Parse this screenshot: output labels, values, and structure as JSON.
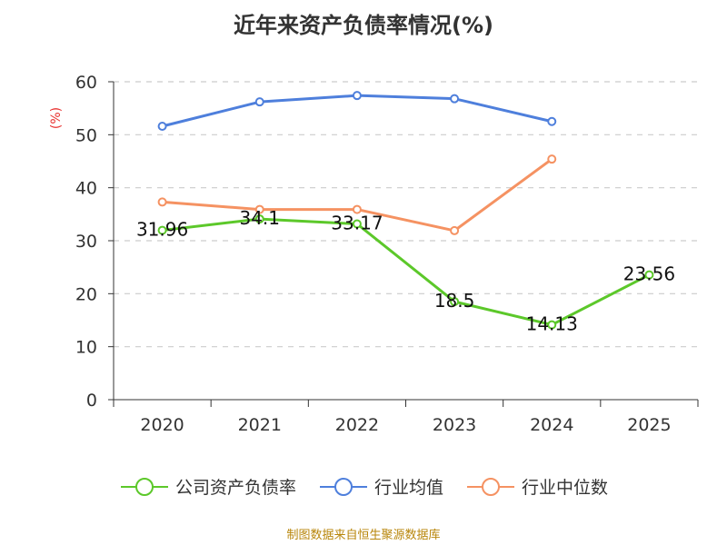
{
  "title": "近年来资产负债率情况(%)",
  "source": "制图数据来自恒生聚源数据库",
  "chart_data": {
    "type": "line",
    "title": "近年来资产负债率情况(%)",
    "ylabel": "(%)",
    "xlabel": "",
    "ylim": [
      0,
      60
    ],
    "yticks": [
      0,
      10,
      20,
      30,
      40,
      50,
      60
    ],
    "categories": [
      "2020",
      "2021",
      "2022",
      "2023",
      "2024",
      "2025"
    ],
    "grid": true,
    "legend_position": "bottom",
    "series": [
      {
        "name": "公司资产负债率",
        "color": "#5cc82a",
        "values": [
          31.96,
          34.1,
          33.17,
          18.5,
          14.13,
          23.56
        ],
        "labels": [
          "31.96",
          "34.1",
          "33.17",
          "18.5",
          "14.13",
          "23.56"
        ]
      },
      {
        "name": "行业均值",
        "color": "#4e7fdc",
        "values": [
          51.6,
          56.2,
          57.4,
          56.8,
          52.5,
          null
        ]
      },
      {
        "name": "行业中位数",
        "color": "#f59262",
        "values": [
          37.3,
          35.9,
          35.9,
          31.9,
          45.4,
          null
        ]
      }
    ]
  }
}
